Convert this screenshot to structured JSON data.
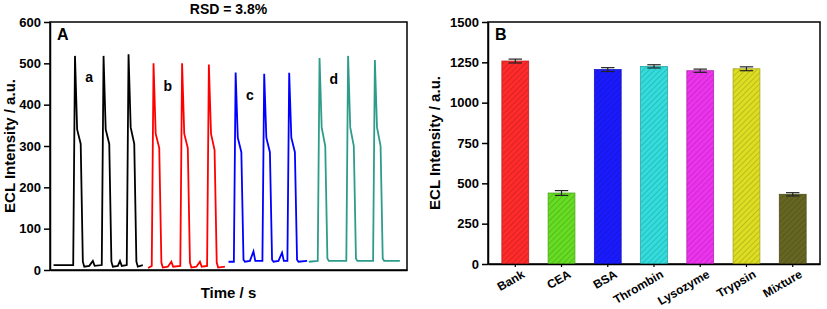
{
  "chart_data": [
    {
      "type": "line",
      "title": "RSD = 3.8%",
      "panel_label": "A",
      "x_label": "Time / s",
      "y_label": "ECL Intensity / a.u.",
      "xlim": [
        0,
        100
      ],
      "xticks": [],
      "ylim": [
        0,
        600
      ],
      "yticks": [
        0,
        100,
        200,
        300,
        400,
        500,
        600
      ],
      "tick_labels": "y",
      "series": [
        {
          "name": "a",
          "color": "#000000",
          "x": [
            1,
            6.5,
            7,
            7.6,
            8.6,
            9.2,
            9.6,
            11,
            12,
            12.5,
            14.5,
            15,
            15.6,
            16.6,
            17.2,
            17.6,
            19,
            19.6,
            20.1,
            21.5,
            22,
            22.6,
            23.6,
            24.2,
            24.6,
            26
          ],
          "values": [
            12,
            12,
            518,
            340,
            305,
            20,
            8,
            10,
            22,
            10,
            12,
            518,
            340,
            305,
            20,
            8,
            10,
            22,
            10,
            12,
            522,
            345,
            305,
            20,
            8,
            12
          ]
        },
        {
          "name": "b",
          "color": "#ff0000",
          "x": [
            27.5,
            28.5,
            29,
            29.6,
            30.6,
            31.2,
            31.6,
            33,
            34,
            34.5,
            36.5,
            37,
            37.6,
            38.6,
            39.2,
            39.6,
            41,
            42,
            42.5,
            44,
            44.5,
            45.1,
            46.1,
            46.7,
            47.1,
            49
          ],
          "values": [
            5,
            10,
            500,
            330,
            295,
            18,
            6,
            8,
            20,
            8,
            10,
            500,
            330,
            295,
            18,
            6,
            8,
            20,
            8,
            10,
            497,
            330,
            290,
            18,
            6,
            8
          ]
        },
        {
          "name": "c",
          "color": "#0000ff",
          "x": [
            50,
            51.5,
            52,
            52.6,
            53.6,
            54.2,
            54.6,
            56,
            57,
            57.5,
            59.5,
            60,
            60.6,
            61.6,
            62.2,
            62.6,
            64,
            65,
            65.5,
            66.5,
            67,
            67.6,
            68.6,
            69.2,
            69.6,
            72
          ],
          "values": [
            20,
            20,
            478,
            320,
            285,
            25,
            20,
            22,
            45,
            22,
            22,
            475,
            320,
            285,
            25,
            20,
            22,
            42,
            22,
            22,
            477,
            320,
            285,
            25,
            20,
            22
          ]
        },
        {
          "name": "d",
          "color": "#2e9c8a",
          "x": [
            72.5,
            75,
            75.5,
            76.1,
            77.1,
            77.7,
            78.1,
            83,
            83.5,
            84.1,
            85.1,
            85.7,
            86.1,
            90.5,
            91,
            91.6,
            92.6,
            93.2,
            93.6,
            98
          ],
          "values": [
            20,
            22,
            513,
            345,
            300,
            28,
            22,
            22,
            518,
            345,
            300,
            28,
            22,
            22,
            508,
            345,
            300,
            28,
            22,
            22
          ]
        }
      ]
    },
    {
      "type": "bar",
      "panel_label": "B",
      "y_label": "ECL Intensity / a.u.",
      "categories": [
        "Bank",
        "CEA",
        "BSA",
        "Thrombin",
        "Lysozyme",
        "Trypsin",
        "Mixture"
      ],
      "values": [
        1258,
        440,
        1205,
        1225,
        1198,
        1210,
        432
      ],
      "errors": [
        12,
        15,
        12,
        10,
        10,
        12,
        10
      ],
      "colors": [
        "#ff2a2a",
        "#66dd22",
        "#1a1aff",
        "#33dddd",
        "#ee33ee",
        "#dddd22",
        "#666622"
      ],
      "ylim": [
        0,
        1500
      ],
      "yticks": [
        0,
        250,
        500,
        750,
        1000,
        1250,
        1500
      ]
    }
  ]
}
